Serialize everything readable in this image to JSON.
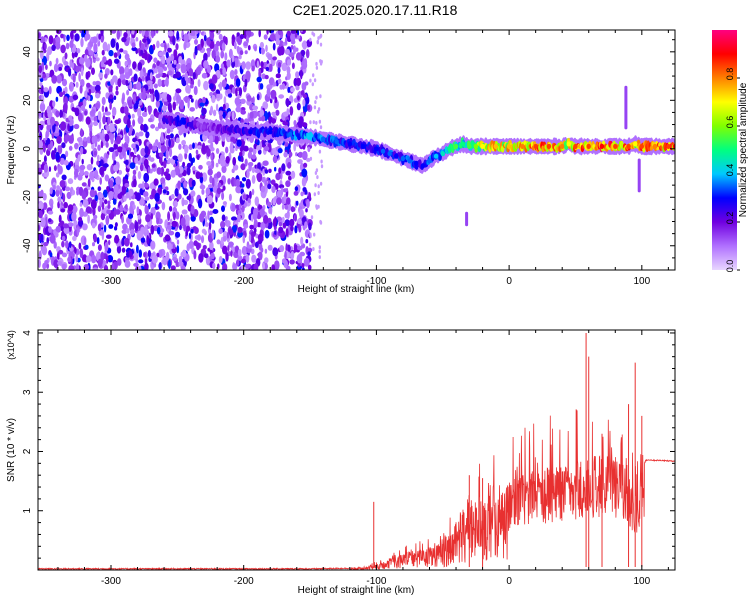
{
  "figure": {
    "title": "C2E1.2025.020.17.11.R18"
  },
  "chart_data": [
    {
      "type": "heatmap",
      "title": "C2E1.2025.020.17.11.R18",
      "xlabel": "Height of straight line (km)",
      "ylabel": "Frequency (Hz)",
      "xlim": [
        -355,
        125
      ],
      "ylim": [
        -50,
        49
      ],
      "xticks": [
        -300,
        -200,
        -100,
        0,
        100
      ],
      "yticks": [
        -40,
        -20,
        0,
        20,
        40
      ],
      "colorbar": {
        "label": "Normalized spectral amplitude",
        "range": [
          0,
          1
        ],
        "ticks": [
          "0.0",
          "0.2",
          "0.4",
          "0.6",
          "0.8"
        ],
        "colors": [
          "#e8d6ff",
          "#b070ff",
          "#7000e0",
          "#0000ff",
          "#00c8ff",
          "#00ff80",
          "#80ff00",
          "#ffff00",
          "#ff8000",
          "#ff0000",
          "#ff0080"
        ]
      },
      "noise_region": {
        "x_range": [
          -355,
          -150
        ],
        "freq_range": [
          -50,
          49
        ]
      },
      "ridge": {
        "x": [
          -260,
          -245,
          -240,
          -230,
          -210,
          -195,
          -180,
          -165,
          -150,
          -140,
          -130,
          -120,
          -110,
          -100,
          -95,
          -90,
          -85,
          -80,
          -75,
          -70,
          -65,
          -60,
          -55,
          -50,
          -45,
          -40,
          -35,
          -30,
          -25,
          -20,
          -10,
          0,
          10,
          20,
          30,
          40,
          45,
          50,
          60,
          70,
          80,
          90,
          95,
          100,
          110,
          120,
          125
        ],
        "freq": [
          12,
          11,
          10,
          9,
          8,
          7,
          7,
          6,
          5,
          4,
          3,
          2,
          1,
          0,
          -1,
          -2,
          -3,
          -4,
          -5,
          -6,
          -7,
          -5,
          -3,
          -2,
          0,
          1,
          2,
          1,
          1,
          1,
          1,
          1,
          1,
          1,
          1,
          1,
          2,
          1,
          1,
          1,
          1,
          1,
          2,
          1,
          1,
          1,
          1
        ],
        "amplitude": [
          0.25,
          0.3,
          0.25,
          0.15,
          0.25,
          0.3,
          0.3,
          0.35,
          0.4,
          0.35,
          0.35,
          0.3,
          0.3,
          0.3,
          0.35,
          0.35,
          0.3,
          0.35,
          0.35,
          0.3,
          0.3,
          0.35,
          0.4,
          0.45,
          0.5,
          0.55,
          0.5,
          0.55,
          0.6,
          0.7,
          0.75,
          0.75,
          0.8,
          0.85,
          0.85,
          0.8,
          0.7,
          0.85,
          0.85,
          0.9,
          0.85,
          0.85,
          0.7,
          0.85,
          0.8,
          0.85,
          0.9
        ]
      },
      "spurs": [
        {
          "x": 88,
          "freq_range": [
            8,
            26
          ]
        },
        {
          "x": 98,
          "freq_range": [
            -18,
            -4
          ]
        },
        {
          "x": -32,
          "freq_range": [
            -32,
            -26
          ]
        }
      ]
    },
    {
      "type": "line",
      "xlabel": "Height of straight line (km)",
      "ylabel": "SNR (10 * v/v)",
      "y_scale_label": "(x10^4)",
      "xlim": [
        -355,
        125
      ],
      "ylim": [
        0,
        4.05
      ],
      "xticks": [
        -300,
        -200,
        -100,
        0,
        100
      ],
      "yticks": [
        1,
        2,
        3,
        4
      ],
      "grid": false,
      "series": [
        {
          "color": "#e83030",
          "x": [
            -355,
            -300,
            -250,
            -200,
            -150,
            -120,
            -110,
            -100,
            -90,
            -80,
            -70,
            -60,
            -50,
            -45,
            -40,
            -35,
            -30,
            -25,
            -20,
            -15,
            -10,
            -5,
            0,
            10,
            20,
            30,
            40,
            50,
            55,
            58,
            60,
            65,
            70,
            75,
            80,
            85,
            88,
            90,
            93,
            95,
            98,
            100,
            103,
            105,
            110,
            115,
            120,
            125
          ],
          "y": [
            0.02,
            0.02,
            0.02,
            0.02,
            0.02,
            0.03,
            0.05,
            0.1,
            0.2,
            0.3,
            0.35,
            0.4,
            0.45,
            0.6,
            0.8,
            1.1,
            1.3,
            1.2,
            1.3,
            1.4,
            1.45,
            1.5,
            1.5,
            1.6,
            1.7,
            1.75,
            1.8,
            1.85,
            1.9,
            1.9,
            1.95,
            1.95,
            1.95,
            1.95,
            1.95,
            1.85,
            1.7,
            1.6,
            1.4,
            1.3,
            1.3,
            1.7,
            1.85,
            1.86,
            1.85,
            1.85,
            1.84,
            1.84
          ]
        }
      ],
      "peak_callouts": [
        {
          "x": -102,
          "y": 1.15
        },
        {
          "x": -30,
          "y": 1.6
        },
        {
          "x": -20,
          "y": 1.55
        },
        {
          "x": 58,
          "y": 4.0
        },
        {
          "x": 60,
          "y": 3.6
        },
        {
          "x": 70,
          "y": 2.3
        },
        {
          "x": 90,
          "y": 2.8
        },
        {
          "x": 95,
          "y": 3.5
        },
        {
          "x": 100,
          "y": 2.6
        }
      ]
    }
  ]
}
